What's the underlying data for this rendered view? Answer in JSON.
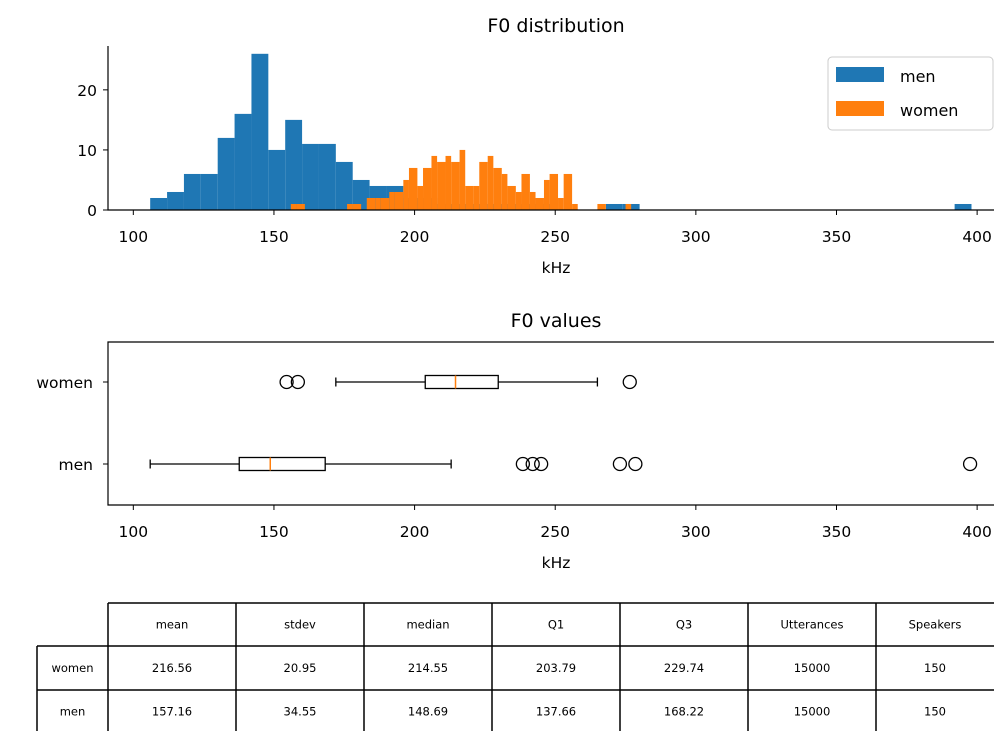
{
  "chart_data": [
    {
      "type": "histogram",
      "title": "F0 distribution",
      "xlabel": "kHz",
      "ylabel": "",
      "xlim": [
        91,
        406
      ],
      "ylim": [
        0,
        27.3
      ],
      "xticks": [
        "100",
        "150",
        "200",
        "250",
        "300",
        "350",
        "400"
      ],
      "yticks": [
        "0",
        "10",
        "20"
      ],
      "legend": {
        "position": "top-right",
        "entries": [
          "men",
          "women"
        ]
      },
      "colors": {
        "men": "#1f77b4",
        "women": "#ff7f0e"
      },
      "series": [
        {
          "name": "men",
          "bins": [
            [
              106,
              112,
              2
            ],
            [
              112,
              118,
              3
            ],
            [
              118,
              124,
              6
            ],
            [
              124,
              130,
              6
            ],
            [
              130,
              136,
              12
            ],
            [
              136,
              142,
              16
            ],
            [
              142,
              148,
              26
            ],
            [
              148,
              154,
              10
            ],
            [
              154,
              160,
              15
            ],
            [
              160,
              166,
              11
            ],
            [
              166,
              172,
              11
            ],
            [
              172,
              178,
              8
            ],
            [
              178,
              184,
              5
            ],
            [
              184,
              190,
              4
            ],
            [
              190,
              196,
              4
            ],
            [
              196,
              202,
              2
            ],
            [
              202,
              208,
              2
            ],
            [
              208,
              214,
              1
            ],
            [
              214,
              220,
              1
            ],
            [
              220,
              226,
              1
            ],
            [
              226,
              232,
              1
            ],
            [
              232,
              238,
              1
            ],
            [
              238,
              244,
              1
            ],
            [
              244,
              250,
              1
            ],
            [
              250,
              256,
              0
            ],
            [
              256,
              262,
              0
            ],
            [
              262,
              268,
              0
            ],
            [
              268,
              274,
              1
            ],
            [
              274,
              280,
              1
            ],
            [
              280,
              286,
              0
            ],
            [
              392,
              398,
              1
            ]
          ]
        },
        {
          "name": "women",
          "bins": [
            [
              156,
              158,
              1
            ],
            [
              158,
              161,
              1
            ],
            [
              176,
              178,
              1
            ],
            [
              178,
              181,
              1
            ],
            [
              181,
              183,
              0
            ],
            [
              183,
              186,
              2
            ],
            [
              186,
              188,
              2
            ],
            [
              188,
              191,
              2
            ],
            [
              191,
              193,
              3
            ],
            [
              193,
              196,
              3
            ],
            [
              196,
              198,
              5
            ],
            [
              198,
              201,
              7
            ],
            [
              201,
              203,
              4
            ],
            [
              203,
              206,
              7
            ],
            [
              206,
              208,
              9
            ],
            [
              208,
              211,
              8
            ],
            [
              211,
              213,
              9
            ],
            [
              213,
              216,
              8
            ],
            [
              216,
              218,
              10
            ],
            [
              218,
              221,
              4
            ],
            [
              221,
              223,
              4
            ],
            [
              223,
              226,
              8
            ],
            [
              226,
              228,
              9
            ],
            [
              228,
              231,
              7
            ],
            [
              231,
              233,
              6
            ],
            [
              233,
              236,
              4
            ],
            [
              236,
              238,
              3
            ],
            [
              238,
              241,
              6
            ],
            [
              241,
              243,
              3
            ],
            [
              243,
              246,
              2
            ],
            [
              246,
              248,
              5
            ],
            [
              248,
              251,
              6
            ],
            [
              251,
              253,
              2
            ],
            [
              253,
              256,
              6
            ],
            [
              256,
              258,
              1
            ],
            [
              265,
              268,
              1
            ],
            [
              275,
              277,
              1
            ]
          ]
        }
      ]
    },
    {
      "type": "boxplot",
      "title": "F0 values",
      "xlabel": "kHz",
      "xlim": [
        91,
        406
      ],
      "xticks": [
        "100",
        "150",
        "200",
        "250",
        "300",
        "350",
        "400"
      ],
      "categories": [
        "women",
        "men"
      ],
      "series": [
        {
          "name": "women",
          "whisker_low": 172,
          "q1": 203.79,
          "median": 214.55,
          "q3": 229.74,
          "whisker_high": 265,
          "outliers": [
            154.5,
            158.5,
            276.5
          ]
        },
        {
          "name": "men",
          "whisker_low": 106,
          "q1": 137.66,
          "median": 148.69,
          "q3": 168.22,
          "whisker_high": 213,
          "outliers": [
            238.5,
            242,
            245,
            273,
            278.5,
            397.5
          ]
        }
      ],
      "colors": {
        "median": "#ff7f0e"
      }
    },
    {
      "type": "table",
      "columns": [
        "mean",
        "stdev",
        "median",
        "Q1",
        "Q3",
        "Utterances",
        "Speakers"
      ],
      "rows": [
        {
          "label": "women",
          "values": [
            "216.56",
            "20.95",
            "214.55",
            "203.79",
            "229.74",
            "15000",
            "150"
          ]
        },
        {
          "label": "men",
          "values": [
            "157.16",
            "34.55",
            "148.69",
            "137.66",
            "168.22",
            "15000",
            "150"
          ]
        }
      ]
    }
  ]
}
